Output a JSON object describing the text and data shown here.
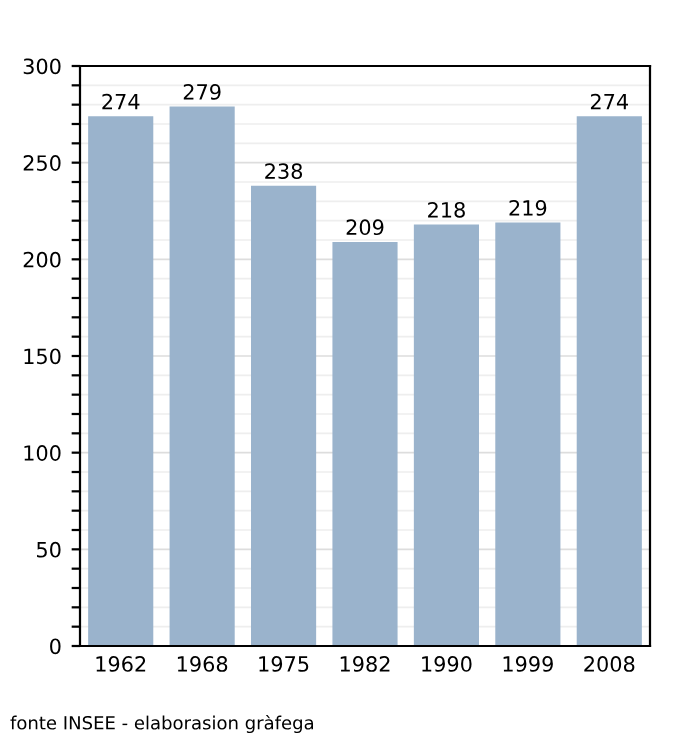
{
  "chart_data": {
    "type": "bar",
    "categories": [
      "1962",
      "1968",
      "1975",
      "1982",
      "1990",
      "1999",
      "2008"
    ],
    "values": [
      274,
      279,
      238,
      209,
      218,
      219,
      274
    ],
    "color": "#9ab3cc",
    "data_labels": true,
    "ylim": [
      0,
      300
    ],
    "yticks": [
      0,
      {
        "value": 10,
        "label": null
      },
      {
        "value": 20,
        "label": null
      },
      {
        "value": 30,
        "label": null
      },
      {
        "value": 40,
        "label": null
      },
      50,
      {
        "value": 60,
        "label": null
      },
      {
        "value": 70,
        "label": null
      },
      {
        "value": 80,
        "label": null
      },
      {
        "value": 90,
        "label": null
      },
      100,
      {
        "value": 110,
        "label": null
      },
      {
        "value": 120,
        "label": null
      },
      {
        "value": 130,
        "label": null
      },
      {
        "value": 140,
        "label": null
      },
      150,
      {
        "value": 160,
        "label": null
      },
      {
        "value": 170,
        "label": null
      },
      {
        "value": 180,
        "label": null
      },
      {
        "value": 190,
        "label": null
      },
      200,
      {
        "value": 210,
        "label": null
      },
      {
        "value": 220,
        "label": null
      },
      {
        "value": 230,
        "label": null
      },
      {
        "value": 240,
        "label": null
      },
      250,
      {
        "value": 260,
        "label": null
      },
      {
        "value": 270,
        "label": null
      },
      {
        "value": 280,
        "label": null
      },
      {
        "value": 290,
        "label": null
      },
      300
    ],
    "grid": "y",
    "annotations": [
      "fonte INSEE - elaborasion gràfega"
    ]
  }
}
